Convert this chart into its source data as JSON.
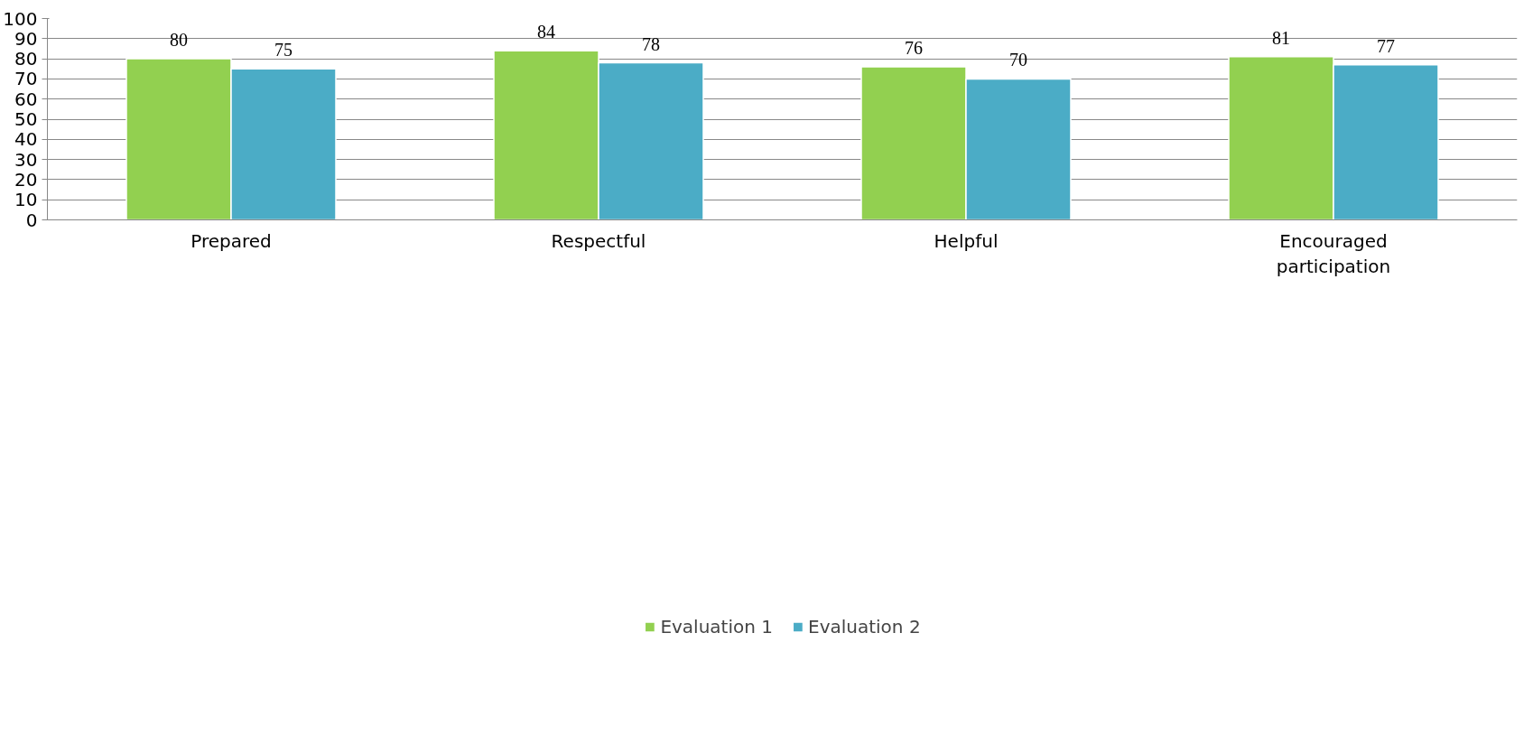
{
  "chart_data": {
    "type": "bar",
    "categories": [
      "Prepared",
      "Respectful",
      "Helpful",
      "Encouraged participation"
    ],
    "series": [
      {
        "name": "Evaluation 1",
        "color": "#92d050",
        "values": [
          80,
          84,
          76,
          81
        ]
      },
      {
        "name": "Evaluation 2",
        "color": "#4bacc6",
        "values": [
          75,
          78,
          70,
          77
        ]
      }
    ],
    "ylim": [
      0,
      100
    ],
    "yticks": [
      0,
      10,
      20,
      30,
      40,
      50,
      60,
      70,
      80,
      90,
      100
    ],
    "grid": "y",
    "legend": "bottom",
    "data_labels": true
  }
}
